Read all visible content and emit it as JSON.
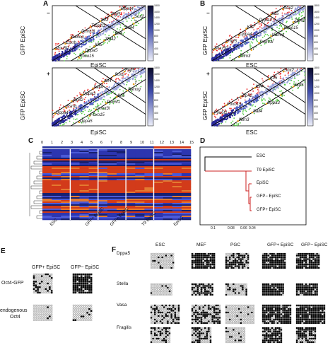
{
  "panels": {
    "A": {
      "letter": "A",
      "top": {
        "ylabel_mark": "−",
        "ylabel_text": "GFP EpiSC",
        "xlabel": "EpiSC",
        "genes": [
          "Pou5f1",
          "Fbxo15",
          "Esrrb",
          "Dppa5",
          "Nanog",
          "Klf5",
          "Dnmt3l",
          "Zfp42",
          "Tfcp2l1",
          "Klf4",
          "Klf2",
          "Sall4",
          "Figf5",
          "T",
          "Dppa4",
          "Sox2"
        ],
        "colorbar": [
          "1800",
          "1600",
          "1400",
          "1200",
          "1000",
          "800",
          "600",
          "400",
          "200"
        ]
      },
      "bottom": {
        "ylabel_mark": "+",
        "ylabel_text": "GFP EpiSC",
        "xlabel": "EpiSC",
        "genes": [
          "Dppa4",
          "Dppa5",
          "Esrrb",
          "Fbxo15",
          "Zfp42",
          "Dnmt3l",
          "Dppa3",
          "Pou5f1",
          "Sall4",
          "Klf5",
          "Klf4",
          "Nanog",
          "Sox2",
          "T",
          "Figf5"
        ],
        "colorbar": [
          "1800",
          "1600",
          "1400",
          "1200",
          "1000",
          "800",
          "600",
          "400",
          "200"
        ]
      }
    },
    "B": {
      "letter": "B",
      "top": {
        "ylabel_mark": "−",
        "ylabel_text": "GFP EpiSC",
        "xlabel": "ESC",
        "genes": [
          "Pou5f1",
          "Ifitm3",
          "Figf5",
          "T",
          "Dppa4",
          "Dnmt3l",
          "Klf2",
          "Nanog",
          "Dppa3",
          "Fbxo15",
          "Klf5",
          "Zfp42",
          "Sox2"
        ],
        "colorbar": [
          "1800",
          "1600",
          "1400",
          "1200",
          "1000",
          "800",
          "600",
          "400",
          "200"
        ]
      },
      "bottom": {
        "ylabel_mark": "+",
        "ylabel_text": "GFP EpiSC",
        "xlabel": "ESC",
        "genes": [
          "Pou5f1",
          "Ifitm3",
          "Fbxo15",
          "Sall4",
          "Zfp42",
          "Dppa3",
          "Klf4",
          "T",
          "Klf5",
          "Figf5",
          "Sox2"
        ],
        "colorbar": [
          "1800",
          "1600",
          "1400",
          "1200",
          "1000",
          "800",
          "600",
          "400",
          "200"
        ]
      }
    },
    "C": {
      "letter": "C",
      "ticks": [
        "0",
        "1",
        "2",
        "3",
        "4",
        "5",
        "6",
        "7",
        "8",
        "9",
        "10",
        "11",
        "12",
        "13",
        "14",
        "15"
      ],
      "groups": [
        {
          "label": "ESC"
        },
        {
          "label": "GFP+ EpiSC"
        },
        {
          "label": "GFP− EpiSC"
        },
        {
          "label": "T9 EpiSC"
        },
        {
          "label": "EpiSC"
        }
      ]
    },
    "D": {
      "letter": "D",
      "leaves": [
        "ESC",
        "T9 EpiSC",
        "EpiSC",
        "GFP− EpiSC",
        "GFP+ EpiSC"
      ],
      "axis_ticks": [
        "0.1",
        "0.08",
        "0.06",
        "0.04"
      ]
    },
    "E": {
      "letter": "E",
      "col1": "GFP+ EpiSC",
      "col2": "GFP− EpiSC",
      "row1": "Oct4-GFP",
      "row2a": "endogenous",
      "row2b": "Oct4"
    },
    "F": {
      "letter": "F",
      "columns": [
        "ESC",
        "MEF",
        "PGC",
        "GFP+ EpiSC",
        "GFP− EpiSC"
      ],
      "rows": [
        "Dppa5",
        "Stella",
        "Vasa",
        "Fragilis"
      ]
    }
  }
}
